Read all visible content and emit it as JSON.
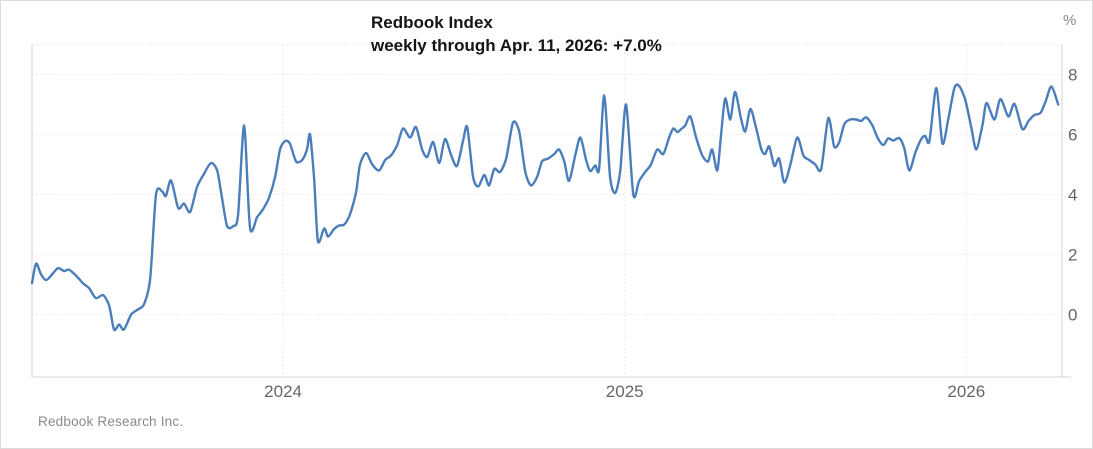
{
  "header": {
    "title": "Redbook Index",
    "subtitle": "weekly through Apr. 11, 2026: +7.0%"
  },
  "footer": {
    "source": "Redbook Research Inc."
  },
  "chart_data": {
    "type": "line",
    "title": "Redbook Index",
    "subtitle": "weekly through Apr. 11, 2026: +7.0%",
    "unit": "%",
    "frequency": "weekly",
    "latest_value": 7.0,
    "latest_date": "Apr. 11, 2026",
    "xlabel": "",
    "ylabel": "%",
    "xlim": [
      2023.265,
      2026.28
    ],
    "ylim": [
      -2.08,
      9.0
    ],
    "x_ticks": [
      {
        "label": "2024",
        "year": 2024
      },
      {
        "label": "2025",
        "year": 2025
      },
      {
        "label": "2026",
        "year": 2026
      }
    ],
    "y_ticks": [
      0,
      2,
      4,
      6,
      8
    ],
    "grid": "dotted",
    "legend_position": "none",
    "line_color": "#4a7ebb",
    "grid_color": "#e3e3e3",
    "frame_color": "#d6d6d6",
    "series": [
      {
        "name": "Redbook Index (yoy %)",
        "points": [
          [
            2023.265,
            1.05
          ],
          [
            2023.277,
            1.7
          ],
          [
            2023.291,
            1.35
          ],
          [
            2023.306,
            1.15
          ],
          [
            2023.321,
            1.3
          ],
          [
            2023.341,
            1.55
          ],
          [
            2023.359,
            1.45
          ],
          [
            2023.373,
            1.5
          ],
          [
            2023.394,
            1.3
          ],
          [
            2023.414,
            1.05
          ],
          [
            2023.432,
            0.88
          ],
          [
            2023.452,
            0.55
          ],
          [
            2023.473,
            0.65
          ],
          [
            2023.491,
            0.3
          ],
          [
            2023.505,
            -0.5
          ],
          [
            2023.52,
            -0.33
          ],
          [
            2023.534,
            -0.5
          ],
          [
            2023.555,
            0.0
          ],
          [
            2023.572,
            0.15
          ],
          [
            2023.593,
            0.35
          ],
          [
            2023.611,
            1.2
          ],
          [
            2023.628,
            4.0
          ],
          [
            2023.646,
            4.1
          ],
          [
            2023.657,
            3.95
          ],
          [
            2023.672,
            4.47
          ],
          [
            2023.693,
            3.55
          ],
          [
            2023.71,
            3.7
          ],
          [
            2023.728,
            3.42
          ],
          [
            2023.748,
            4.25
          ],
          [
            2023.769,
            4.7
          ],
          [
            2023.789,
            5.05
          ],
          [
            2023.807,
            4.8
          ],
          [
            2023.821,
            3.9
          ],
          [
            2023.836,
            2.95
          ],
          [
            2023.854,
            2.95
          ],
          [
            2023.868,
            3.3
          ],
          [
            2023.886,
            6.3
          ],
          [
            2023.903,
            2.9
          ],
          [
            2023.924,
            3.25
          ],
          [
            2023.941,
            3.5
          ],
          [
            2023.959,
            3.9
          ],
          [
            2023.977,
            4.6
          ],
          [
            2023.991,
            5.5
          ],
          [
            2024.006,
            5.78
          ],
          [
            2024.02,
            5.7
          ],
          [
            2024.038,
            5.1
          ],
          [
            2024.056,
            5.15
          ],
          [
            2024.07,
            5.5
          ],
          [
            2024.079,
            6.0
          ],
          [
            2024.091,
            4.5
          ],
          [
            2024.102,
            2.45
          ],
          [
            2024.12,
            2.87
          ],
          [
            2024.132,
            2.6
          ],
          [
            2024.149,
            2.85
          ],
          [
            2024.164,
            2.97
          ],
          [
            2024.179,
            3.0
          ],
          [
            2024.196,
            3.35
          ],
          [
            2024.214,
            4.1
          ],
          [
            2024.225,
            5.0
          ],
          [
            2024.243,
            5.38
          ],
          [
            2024.261,
            5.0
          ],
          [
            2024.281,
            4.8
          ],
          [
            2024.299,
            5.15
          ],
          [
            2024.316,
            5.3
          ],
          [
            2024.334,
            5.65
          ],
          [
            2024.351,
            6.2
          ],
          [
            2024.372,
            5.9
          ],
          [
            2024.389,
            6.25
          ],
          [
            2024.407,
            5.5
          ],
          [
            2024.422,
            5.25
          ],
          [
            2024.439,
            5.75
          ],
          [
            2024.457,
            5.05
          ],
          [
            2024.474,
            5.85
          ],
          [
            2024.492,
            5.3
          ],
          [
            2024.509,
            4.95
          ],
          [
            2024.527,
            5.8
          ],
          [
            2024.539,
            6.25
          ],
          [
            2024.556,
            4.6
          ],
          [
            2024.571,
            4.27
          ],
          [
            2024.589,
            4.65
          ],
          [
            2024.603,
            4.3
          ],
          [
            2024.618,
            4.85
          ],
          [
            2024.635,
            4.75
          ],
          [
            2024.653,
            5.2
          ],
          [
            2024.673,
            6.4
          ],
          [
            2024.691,
            6.1
          ],
          [
            2024.709,
            4.75
          ],
          [
            2024.726,
            4.3
          ],
          [
            2024.744,
            4.6
          ],
          [
            2024.758,
            5.1
          ],
          [
            2024.776,
            5.2
          ],
          [
            2024.794,
            5.35
          ],
          [
            2024.808,
            5.5
          ],
          [
            2024.823,
            5.1
          ],
          [
            2024.837,
            4.45
          ],
          [
            2024.855,
            5.3
          ],
          [
            2024.87,
            5.9
          ],
          [
            2024.887,
            5.15
          ],
          [
            2024.899,
            4.78
          ],
          [
            2024.914,
            4.97
          ],
          [
            2024.925,
            4.85
          ],
          [
            2024.94,
            7.3
          ],
          [
            2024.957,
            4.6
          ],
          [
            2024.972,
            4.05
          ],
          [
            2024.987,
            4.8
          ],
          [
            2025.004,
            7.0
          ],
          [
            2025.025,
            4.0
          ],
          [
            2025.042,
            4.45
          ],
          [
            2025.06,
            4.75
          ],
          [
            2025.077,
            5.0
          ],
          [
            2025.095,
            5.5
          ],
          [
            2025.113,
            5.35
          ],
          [
            2025.13,
            5.9
          ],
          [
            2025.142,
            6.2
          ],
          [
            2025.154,
            6.08
          ],
          [
            2025.165,
            6.18
          ],
          [
            2025.177,
            6.3
          ],
          [
            2025.192,
            6.6
          ],
          [
            2025.209,
            5.9
          ],
          [
            2025.227,
            5.3
          ],
          [
            2025.244,
            5.1
          ],
          [
            2025.256,
            5.5
          ],
          [
            2025.271,
            4.8
          ],
          [
            2025.282,
            6.0
          ],
          [
            2025.294,
            7.2
          ],
          [
            2025.309,
            6.5
          ],
          [
            2025.323,
            7.42
          ],
          [
            2025.341,
            6.5
          ],
          [
            2025.353,
            6.1
          ],
          [
            2025.368,
            6.85
          ],
          [
            2025.385,
            6.2
          ],
          [
            2025.4,
            5.5
          ],
          [
            2025.411,
            5.35
          ],
          [
            2025.423,
            5.6
          ],
          [
            2025.438,
            4.95
          ],
          [
            2025.452,
            5.2
          ],
          [
            2025.467,
            4.4
          ],
          [
            2025.485,
            5.0
          ],
          [
            2025.505,
            5.9
          ],
          [
            2025.523,
            5.3
          ],
          [
            2025.54,
            5.15
          ],
          [
            2025.558,
            5.0
          ],
          [
            2025.575,
            4.85
          ],
          [
            2025.596,
            6.55
          ],
          [
            2025.613,
            5.6
          ],
          [
            2025.628,
            5.75
          ],
          [
            2025.643,
            6.35
          ],
          [
            2025.66,
            6.5
          ],
          [
            2025.678,
            6.5
          ],
          [
            2025.692,
            6.45
          ],
          [
            2025.707,
            6.57
          ],
          [
            2025.725,
            6.3
          ],
          [
            2025.742,
            5.85
          ],
          [
            2025.757,
            5.65
          ],
          [
            2025.771,
            5.87
          ],
          [
            2025.786,
            5.8
          ],
          [
            2025.804,
            5.88
          ],
          [
            2025.818,
            5.55
          ],
          [
            2025.833,
            4.8
          ],
          [
            2025.851,
            5.4
          ],
          [
            2025.868,
            5.85
          ],
          [
            2025.88,
            5.95
          ],
          [
            2025.892,
            5.78
          ],
          [
            2025.912,
            7.55
          ],
          [
            2025.93,
            5.7
          ],
          [
            2025.947,
            6.5
          ],
          [
            2025.965,
            7.55
          ],
          [
            2025.979,
            7.62
          ],
          [
            2025.997,
            7.15
          ],
          [
            2026.015,
            6.2
          ],
          [
            2026.029,
            5.5
          ],
          [
            2026.047,
            6.3
          ],
          [
            2026.059,
            7.05
          ],
          [
            2026.082,
            6.5
          ],
          [
            2026.1,
            7.18
          ],
          [
            2026.123,
            6.6
          ],
          [
            2026.141,
            7.02
          ],
          [
            2026.164,
            6.18
          ],
          [
            2026.182,
            6.45
          ],
          [
            2026.199,
            6.65
          ],
          [
            2026.217,
            6.72
          ],
          [
            2026.232,
            7.1
          ],
          [
            2026.249,
            7.6
          ],
          [
            2026.269,
            7.0
          ]
        ]
      }
    ]
  }
}
